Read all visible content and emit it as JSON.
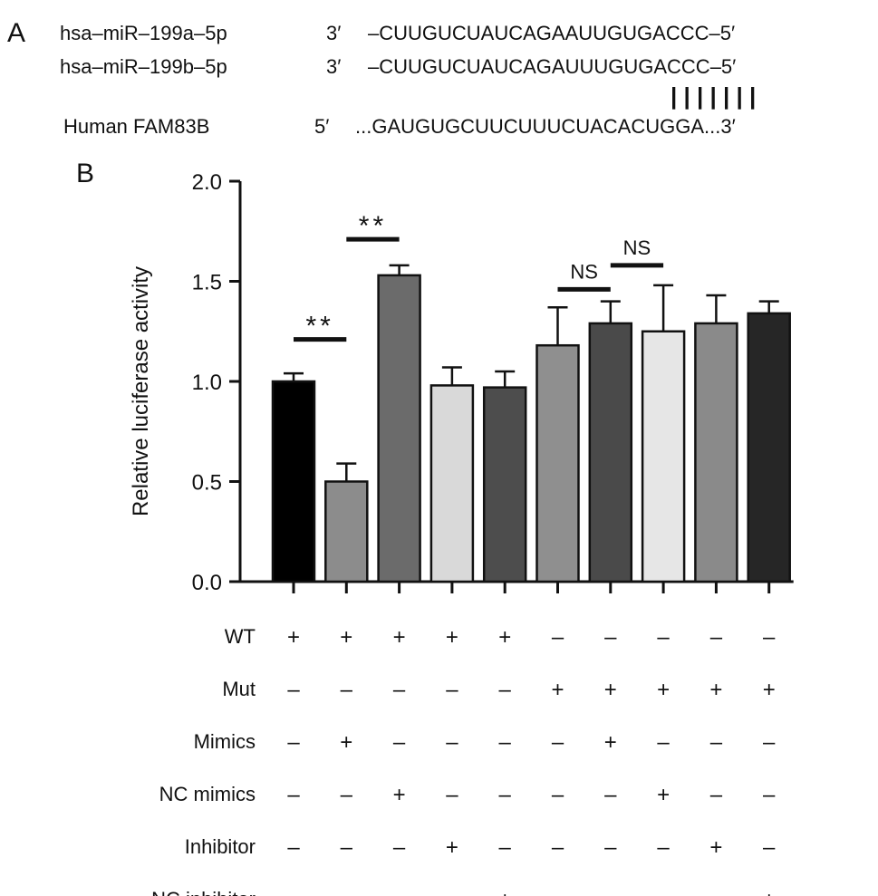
{
  "panel_a": {
    "letter": "A",
    "rows": [
      {
        "name": "hsa–miR–199a–5p",
        "end": "3′",
        "seq": "–CUUGUCUAUCAGAAUUGUGACCC–5′"
      },
      {
        "name": "hsa–miR–199b–5p",
        "end": "3′",
        "seq": "–CUUGUCUAUCAGAUUUGUGACCC–5′"
      },
      {
        "name": "Human FAM83B",
        "end": "5′",
        "seq": "...GAUGUGCUUCUUUCUACACUGGA...3′"
      }
    ],
    "pairing_marks": "| | | | | | |"
  },
  "panel_b": {
    "letter": "B"
  },
  "chart_data": {
    "type": "bar",
    "ylabel": "Relative luciferase activity",
    "ylim": [
      0,
      2.0
    ],
    "yticks": [
      "0.0",
      "0.5",
      "1.0",
      "1.5",
      "2.0"
    ],
    "values": [
      1.0,
      0.5,
      1.53,
      0.98,
      0.97,
      1.18,
      1.29,
      1.25,
      1.29,
      1.34
    ],
    "errors": [
      0.04,
      0.09,
      0.05,
      0.09,
      0.08,
      0.19,
      0.11,
      0.23,
      0.14,
      0.06
    ],
    "colors": [
      "#000000",
      "#8c8c8c",
      "#6b6b6b",
      "#d9d9d9",
      "#4d4d4d",
      "#8f8f8f",
      "#4a4a4a",
      "#e6e6e6",
      "#8a8a8a",
      "#262626"
    ],
    "conditions": [
      {
        "label": "WT",
        "marks": [
          "+",
          "+",
          "+",
          "+",
          "+",
          "–",
          "–",
          "–",
          "–",
          "–"
        ]
      },
      {
        "label": "Mut",
        "marks": [
          "–",
          "–",
          "–",
          "–",
          "–",
          "+",
          "+",
          "+",
          "+",
          "+"
        ]
      },
      {
        "label": "Mimics",
        "marks": [
          "–",
          "+",
          "–",
          "–",
          "–",
          "–",
          "+",
          "–",
          "–",
          "–"
        ]
      },
      {
        "label": "NC mimics",
        "marks": [
          "–",
          "–",
          "+",
          "–",
          "–",
          "–",
          "–",
          "+",
          "–",
          "–"
        ]
      },
      {
        "label": "Inhibitor",
        "marks": [
          "–",
          "–",
          "–",
          "+",
          "–",
          "–",
          "–",
          "–",
          "+",
          "–"
        ]
      },
      {
        "label": "NC inhibitor",
        "marks": [
          "–",
          "–",
          "–",
          "–",
          "+",
          "–",
          "–",
          "–",
          "–",
          "+"
        ]
      }
    ],
    "annotations": [
      {
        "text": "**",
        "between": [
          0,
          1
        ],
        "y": 1.21
      },
      {
        "text": "**",
        "between": [
          1,
          2
        ],
        "y": 1.71
      },
      {
        "text": "NS",
        "between": [
          5,
          6
        ],
        "y": 1.46
      },
      {
        "text": "NS",
        "between": [
          6,
          7
        ],
        "y": 1.58
      }
    ]
  }
}
